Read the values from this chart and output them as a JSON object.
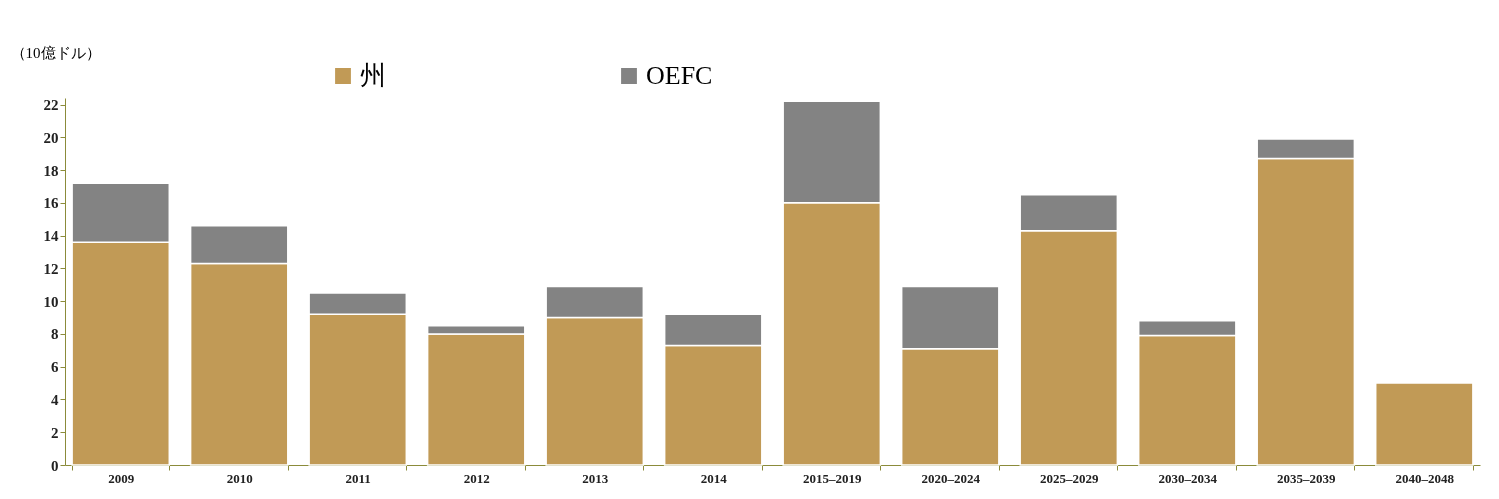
{
  "chart_data": {
    "type": "bar",
    "stacked": true,
    "ylabel": "（10億ドル）",
    "categories": [
      "2009",
      "2010",
      "2011",
      "2012",
      "2013",
      "2014",
      "2015–2019",
      "2020–2024",
      "2025–2029",
      "2030–2034",
      "2035–2039",
      "2040–2048"
    ],
    "series": [
      {
        "name": "州",
        "color": "#c19a56",
        "values": [
          13.6,
          12.3,
          9.2,
          8.0,
          9.0,
          7.3,
          16.0,
          7.1,
          14.3,
          7.9,
          18.7,
          5.0
        ]
      },
      {
        "name": "OEFC",
        "color": "#838383",
        "values": [
          3.6,
          2.3,
          1.3,
          0.5,
          1.9,
          1.9,
          6.2,
          3.8,
          2.2,
          0.9,
          1.2,
          null
        ]
      }
    ],
    "ylim": [
      0,
      22.4
    ],
    "yticks": [
      0,
      2,
      4,
      6,
      8,
      10,
      12,
      14,
      16,
      18,
      20,
      22
    ],
    "grid": false,
    "legend": "top"
  }
}
